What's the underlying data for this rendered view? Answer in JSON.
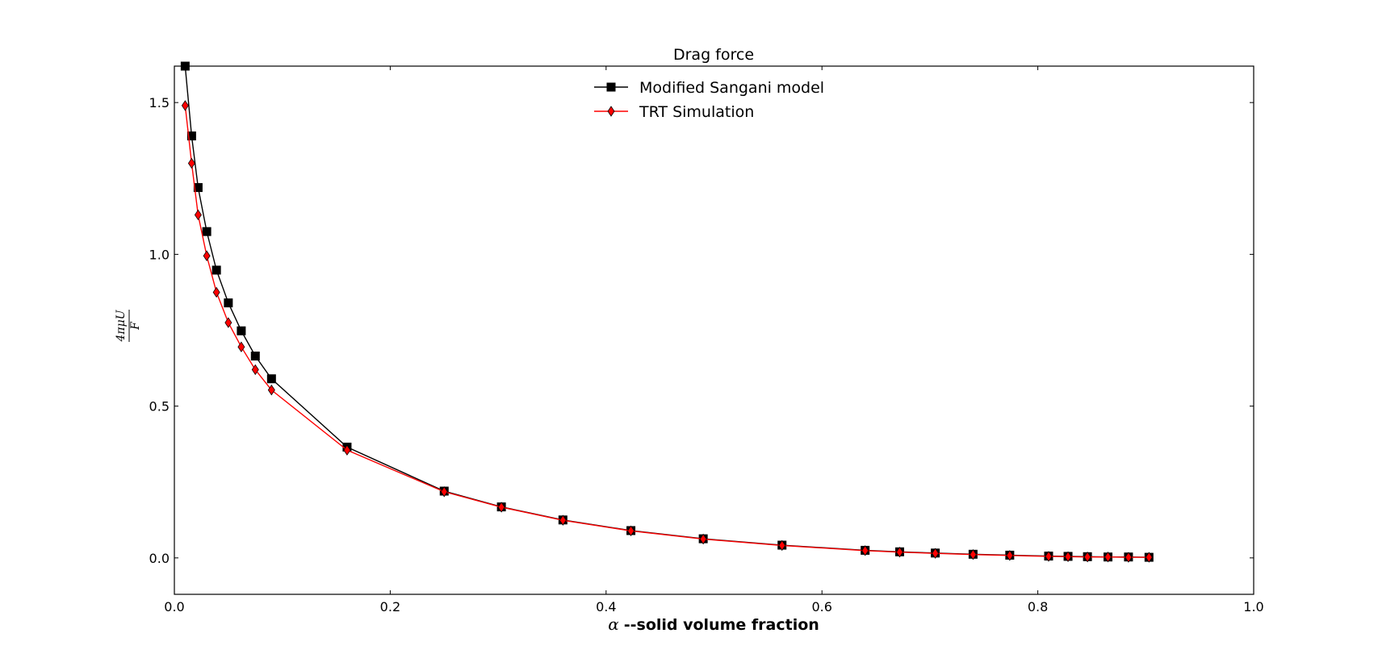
{
  "chart_data": {
    "type": "line",
    "title": "Drag force",
    "xlabel_symbol": "α",
    "xlabel": "--solid volume fraction",
    "ylabel_numerator": "4πμU",
    "ylabel_denominator": "F",
    "xlim": [
      0.0,
      1.0
    ],
    "ylim": [
      -0.12,
      1.62
    ],
    "xticks": [
      0.0,
      0.2,
      0.4,
      0.6,
      0.8,
      1.0
    ],
    "xtick_labels": [
      "0.0",
      "0.2",
      "0.4",
      "0.6",
      "0.8",
      "1.0"
    ],
    "yticks": [
      0.0,
      0.5,
      1.0,
      1.5
    ],
    "ytick_labels": [
      "0.0",
      "0.5",
      "1.0",
      "1.5"
    ],
    "legend_position": "top-center",
    "grid": false,
    "series": [
      {
        "name": "Modified Sangani model",
        "color": "#000000",
        "marker": "square",
        "x": [
          0.01,
          0.016,
          0.022,
          0.03,
          0.039,
          0.05,
          0.062,
          0.075,
          0.09,
          0.16,
          0.25,
          0.303,
          0.36,
          0.423,
          0.49,
          0.563,
          0.64,
          0.672,
          0.705,
          0.74,
          0.774,
          0.81,
          0.828,
          0.846,
          0.865,
          0.884,
          0.903
        ],
        "y": [
          1.62,
          1.39,
          1.22,
          1.075,
          0.948,
          0.84,
          0.748,
          0.665,
          0.59,
          0.365,
          0.22,
          0.168,
          0.125,
          0.09,
          0.063,
          0.042,
          0.025,
          0.02,
          0.016,
          0.012,
          0.009,
          0.006,
          0.005,
          0.004,
          0.003,
          0.003,
          0.002
        ]
      },
      {
        "name": "TRT Simulation",
        "color": "#ff0000",
        "marker": "diamond",
        "x": [
          0.01,
          0.016,
          0.022,
          0.03,
          0.039,
          0.05,
          0.062,
          0.075,
          0.09,
          0.16,
          0.25,
          0.303,
          0.36,
          0.423,
          0.49,
          0.563,
          0.64,
          0.672,
          0.705,
          0.74,
          0.774,
          0.81,
          0.828,
          0.846,
          0.865,
          0.884,
          0.903
        ],
        "y": [
          1.49,
          1.3,
          1.13,
          0.995,
          0.875,
          0.775,
          0.695,
          0.62,
          0.553,
          0.355,
          0.218,
          0.167,
          0.124,
          0.089,
          0.062,
          0.041,
          0.024,
          0.019,
          0.015,
          0.011,
          0.008,
          0.005,
          0.004,
          0.003,
          0.003,
          0.002,
          0.002
        ]
      }
    ]
  }
}
